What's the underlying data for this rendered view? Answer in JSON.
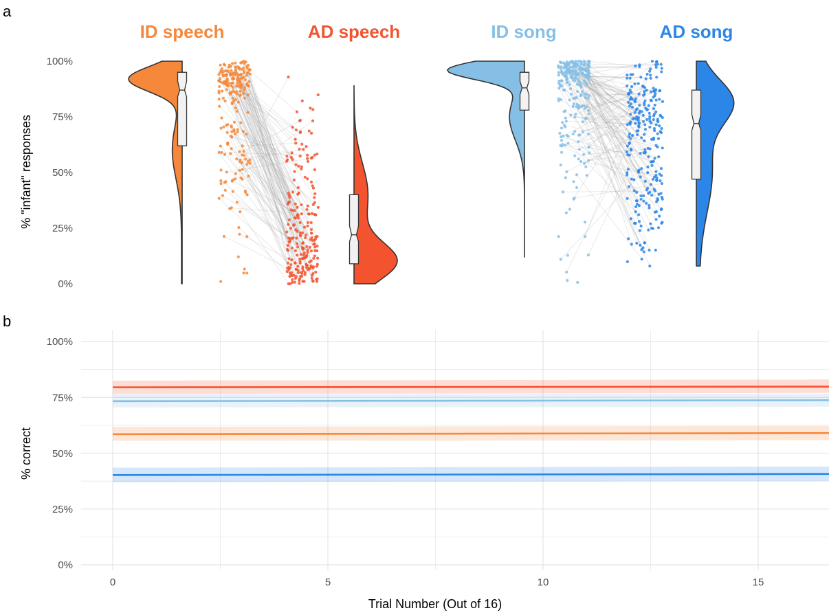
{
  "panel_labels": {
    "a": "a",
    "b": "b"
  },
  "colors": {
    "id_speech": "#f5883a",
    "ad_speech": "#f3542f",
    "id_song": "#86bfe6",
    "ad_song": "#2b86e8",
    "grid": "#e5e5e5",
    "pair_line": "#9a9a9a"
  },
  "chart_data": [
    {
      "type": "raincloud",
      "panel": "a",
      "ylabel": "% \"infant\" responses",
      "yticks": [
        "0%",
        "25%",
        "50%",
        "75%",
        "100%"
      ],
      "ylim": [
        0,
        100
      ],
      "groups": [
        {
          "key": "id_speech",
          "name": "ID speech",
          "box": {
            "q1": 62,
            "median": 87,
            "q3": 95,
            "notch": [
              84,
              91
            ]
          }
        },
        {
          "key": "ad_speech",
          "name": "AD speech",
          "box": {
            "q1": 9,
            "median": 22,
            "q3": 40,
            "notch": [
              19,
              26
            ]
          }
        },
        {
          "key": "id_song",
          "name": "ID song",
          "box": {
            "q1": 78,
            "median": 88,
            "q3": 95,
            "notch": [
              85,
              91
            ]
          }
        },
        {
          "key": "ad_song",
          "name": "AD song",
          "box": {
            "q1": 47,
            "median": 72,
            "q3": 87,
            "notch": [
              69,
              76
            ]
          }
        }
      ],
      "legend": "none",
      "grid": false
    },
    {
      "type": "line",
      "panel": "b",
      "xlabel": "Trial Number (Out of 16)",
      "ylabel": "% correct",
      "xticks": [
        "0",
        "5",
        "10",
        "15"
      ],
      "yticks": [
        "0%",
        "25%",
        "50%",
        "75%",
        "100%"
      ],
      "xlim": [
        -0.7,
        16.7
      ],
      "ylim": [
        0,
        100
      ],
      "grid": true,
      "legend": "none",
      "series": [
        {
          "key": "ad_speech",
          "x": [
            0,
            16.7
          ],
          "y": [
            79.5,
            79.8
          ],
          "ci": [
            [
              76.5,
              82.5
            ],
            [
              77.0,
              83.0
            ]
          ]
        },
        {
          "key": "id_song",
          "x": [
            0,
            16.7
          ],
          "y": [
            73.3,
            73.7
          ],
          "ci": [
            [
              70.5,
              76.3
            ],
            [
              70.8,
              76.7
            ]
          ]
        },
        {
          "key": "id_speech",
          "x": [
            0,
            16.7
          ],
          "y": [
            58.5,
            59.0
          ],
          "ci": [
            [
              55.5,
              61.8
            ],
            [
              55.8,
              62.2
            ]
          ]
        },
        {
          "key": "ad_song",
          "x": [
            0,
            16.7
          ],
          "y": [
            40.2,
            40.7
          ],
          "ci": [
            [
              37.0,
              43.5
            ],
            [
              37.5,
              44.0
            ]
          ]
        }
      ]
    }
  ]
}
